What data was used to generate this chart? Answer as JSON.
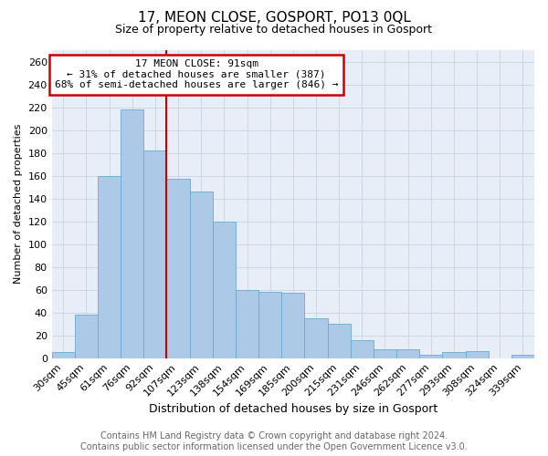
{
  "title": "17, MEON CLOSE, GOSPORT, PO13 0QL",
  "subtitle": "Size of property relative to detached houses in Gosport",
  "xlabel": "Distribution of detached houses by size in Gosport",
  "ylabel": "Number of detached properties",
  "categories": [
    "30sqm",
    "45sqm",
    "61sqm",
    "76sqm",
    "92sqm",
    "107sqm",
    "123sqm",
    "138sqm",
    "154sqm",
    "169sqm",
    "185sqm",
    "200sqm",
    "215sqm",
    "231sqm",
    "246sqm",
    "262sqm",
    "277sqm",
    "293sqm",
    "308sqm",
    "324sqm",
    "339sqm"
  ],
  "values": [
    5,
    38,
    160,
    218,
    182,
    157,
    146,
    120,
    60,
    58,
    57,
    35,
    30,
    16,
    8,
    8,
    3,
    5,
    6,
    0,
    3
  ],
  "bar_color": "#adc9e8",
  "bar_edge_color": "#6aaad4",
  "vline_x_index": 4,
  "annotation_text": "17 MEON CLOSE: 91sqm\n← 31% of detached houses are smaller (387)\n68% of semi-detached houses are larger (846) →",
  "annotation_box_color": "#ffffff",
  "annotation_box_edge_color": "#cc0000",
  "vline_color": "#cc0000",
  "ylim": [
    0,
    270
  ],
  "yticks": [
    0,
    20,
    40,
    60,
    80,
    100,
    120,
    140,
    160,
    180,
    200,
    220,
    240,
    260
  ],
  "grid_color": "#c8d4e4",
  "bg_color": "#e8eef8",
  "footer_line1": "Contains HM Land Registry data © Crown copyright and database right 2024.",
  "footer_line2": "Contains public sector information licensed under the Open Government Licence v3.0.",
  "title_fontsize": 11,
  "subtitle_fontsize": 9,
  "xlabel_fontsize": 9,
  "ylabel_fontsize": 8,
  "tick_fontsize": 8,
  "annot_fontsize": 8,
  "footer_fontsize": 7
}
